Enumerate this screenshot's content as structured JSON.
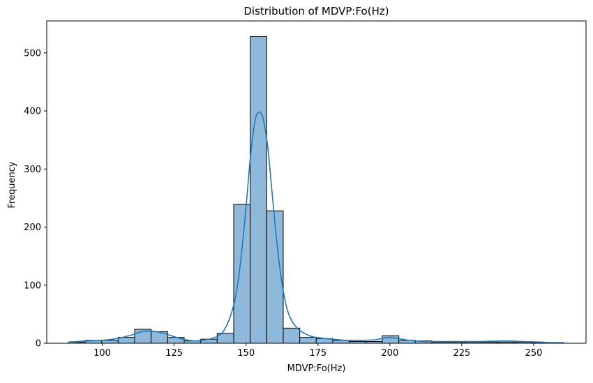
{
  "chart_data": {
    "type": "bar",
    "title": "Distribution of MDVP:Fo(Hz)",
    "xlabel": "MDVP:Fo(Hz)",
    "ylabel": "Frequency",
    "xlim": [
      80.7,
      268.2
    ],
    "ylim": [
      0,
      555
    ],
    "x_ticks": [
      100,
      125,
      150,
      175,
      200,
      225,
      250
    ],
    "y_ticks": [
      0,
      100,
      200,
      300,
      400,
      500
    ],
    "bins": {
      "start": 88.3,
      "width": 5.74,
      "counts": [
        2,
        5,
        5,
        10,
        24,
        20,
        10,
        4,
        7,
        17,
        239,
        528,
        228,
        26,
        10,
        8,
        5,
        3,
        3,
        13,
        5,
        4,
        2,
        2,
        2,
        2,
        2,
        2,
        1,
        1
      ]
    },
    "kde": {
      "x": [
        88.3,
        95,
        100,
        105,
        110,
        113,
        116,
        120,
        124,
        128,
        132,
        136,
        140,
        143,
        146,
        148,
        150,
        151.5,
        153,
        154,
        155,
        156,
        157.5,
        159,
        161,
        163,
        165,
        168,
        172,
        176,
        180,
        185,
        190,
        195,
        198,
        200,
        203,
        207,
        212,
        218,
        225,
        232,
        240,
        246,
        252,
        256,
        260.3
      ],
      "y": [
        2,
        4,
        5,
        8,
        14,
        19,
        21,
        19,
        13,
        7,
        4,
        6,
        12,
        28,
        72,
        136,
        235,
        320,
        380,
        396,
        397,
        385,
        340,
        262,
        160,
        88,
        48,
        25,
        13,
        9,
        7,
        5,
        5,
        6,
        9,
        10,
        8,
        5,
        3,
        3,
        3,
        3,
        4,
        3,
        2,
        1,
        1
      ]
    },
    "grid": false,
    "legend": "none",
    "bar_color": "#8fb9da",
    "line_color": "#1f77b4"
  }
}
